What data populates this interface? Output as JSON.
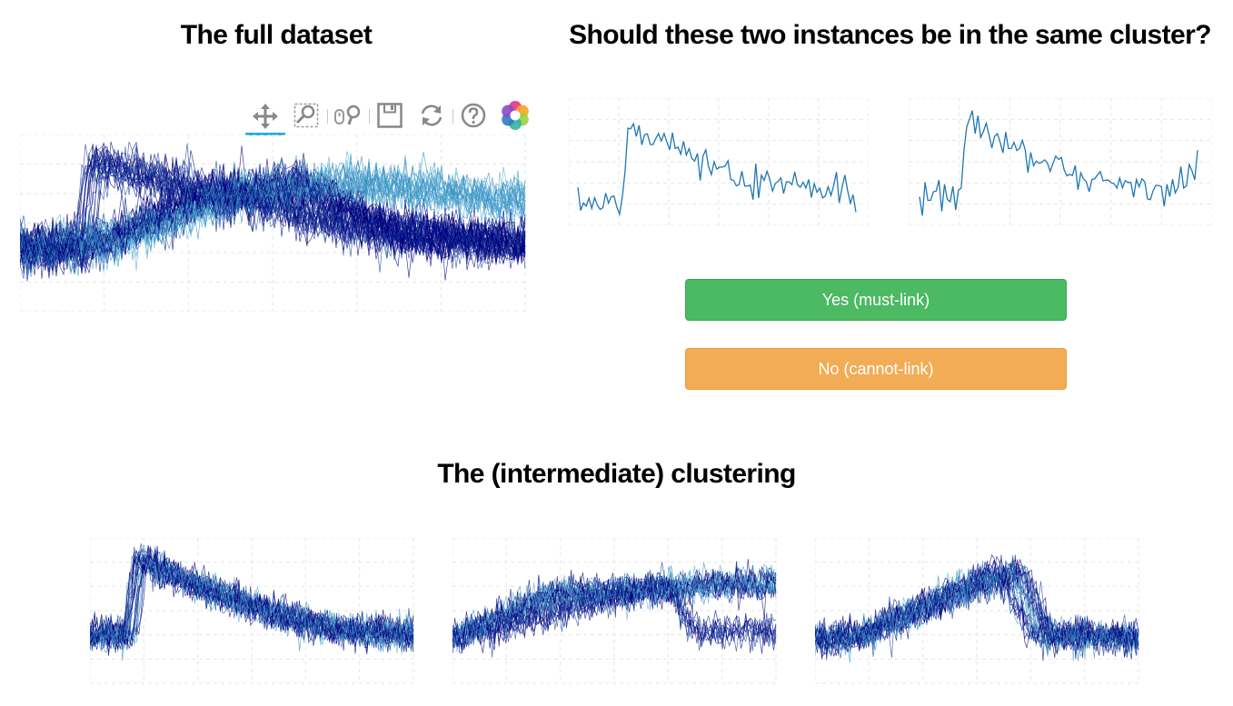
{
  "titles": {
    "full_dataset": "The full dataset",
    "question": "Should these two instances be in the same cluster?",
    "clustering": "The (intermediate) clustering"
  },
  "buttons": {
    "yes": "Yes (must-link)",
    "no": "No (cannot-link)"
  },
  "toolbar": {
    "tools": [
      {
        "name": "pan-tool",
        "icon": "pan-icon",
        "active": true
      },
      {
        "name": "box-zoom-tool",
        "icon": "box-zoom-icon",
        "active": false
      },
      {
        "name": "wheel-zoom-tool",
        "icon": "wheel-zoom-icon",
        "active": false
      },
      {
        "name": "save-tool",
        "icon": "save-icon",
        "active": false
      },
      {
        "name": "reset-tool",
        "icon": "reset-icon",
        "active": false
      },
      {
        "name": "help-tool",
        "icon": "help-icon",
        "active": false
      },
      {
        "name": "bokeh-logo",
        "icon": "bokeh-logo-icon",
        "active": false
      }
    ]
  },
  "colors": {
    "dark_line": "#00007f",
    "light_line": "#2f8fbf",
    "instance_line": "#1f77b4",
    "grid": "#e6e6e6",
    "yes_button": "#4cb963",
    "no_button": "#f2ac56",
    "toolbar_active": "#26aae1"
  },
  "chart_data": [
    {
      "id": "full-dataset",
      "type": "line",
      "title": "The full dataset",
      "grid": true,
      "description_series": "overlay of many time series: low plateau, rise near 11%, falling back"
    },
    {
      "id": "instance-a",
      "type": "line",
      "grid": true
    },
    {
      "id": "instance-b",
      "type": "line",
      "grid": true
    },
    {
      "id": "cluster-1",
      "type": "line",
      "grid": true
    },
    {
      "id": "cluster-2",
      "type": "line",
      "grid": true
    },
    {
      "id": "cluster-3",
      "type": "line",
      "grid": true
    }
  ]
}
